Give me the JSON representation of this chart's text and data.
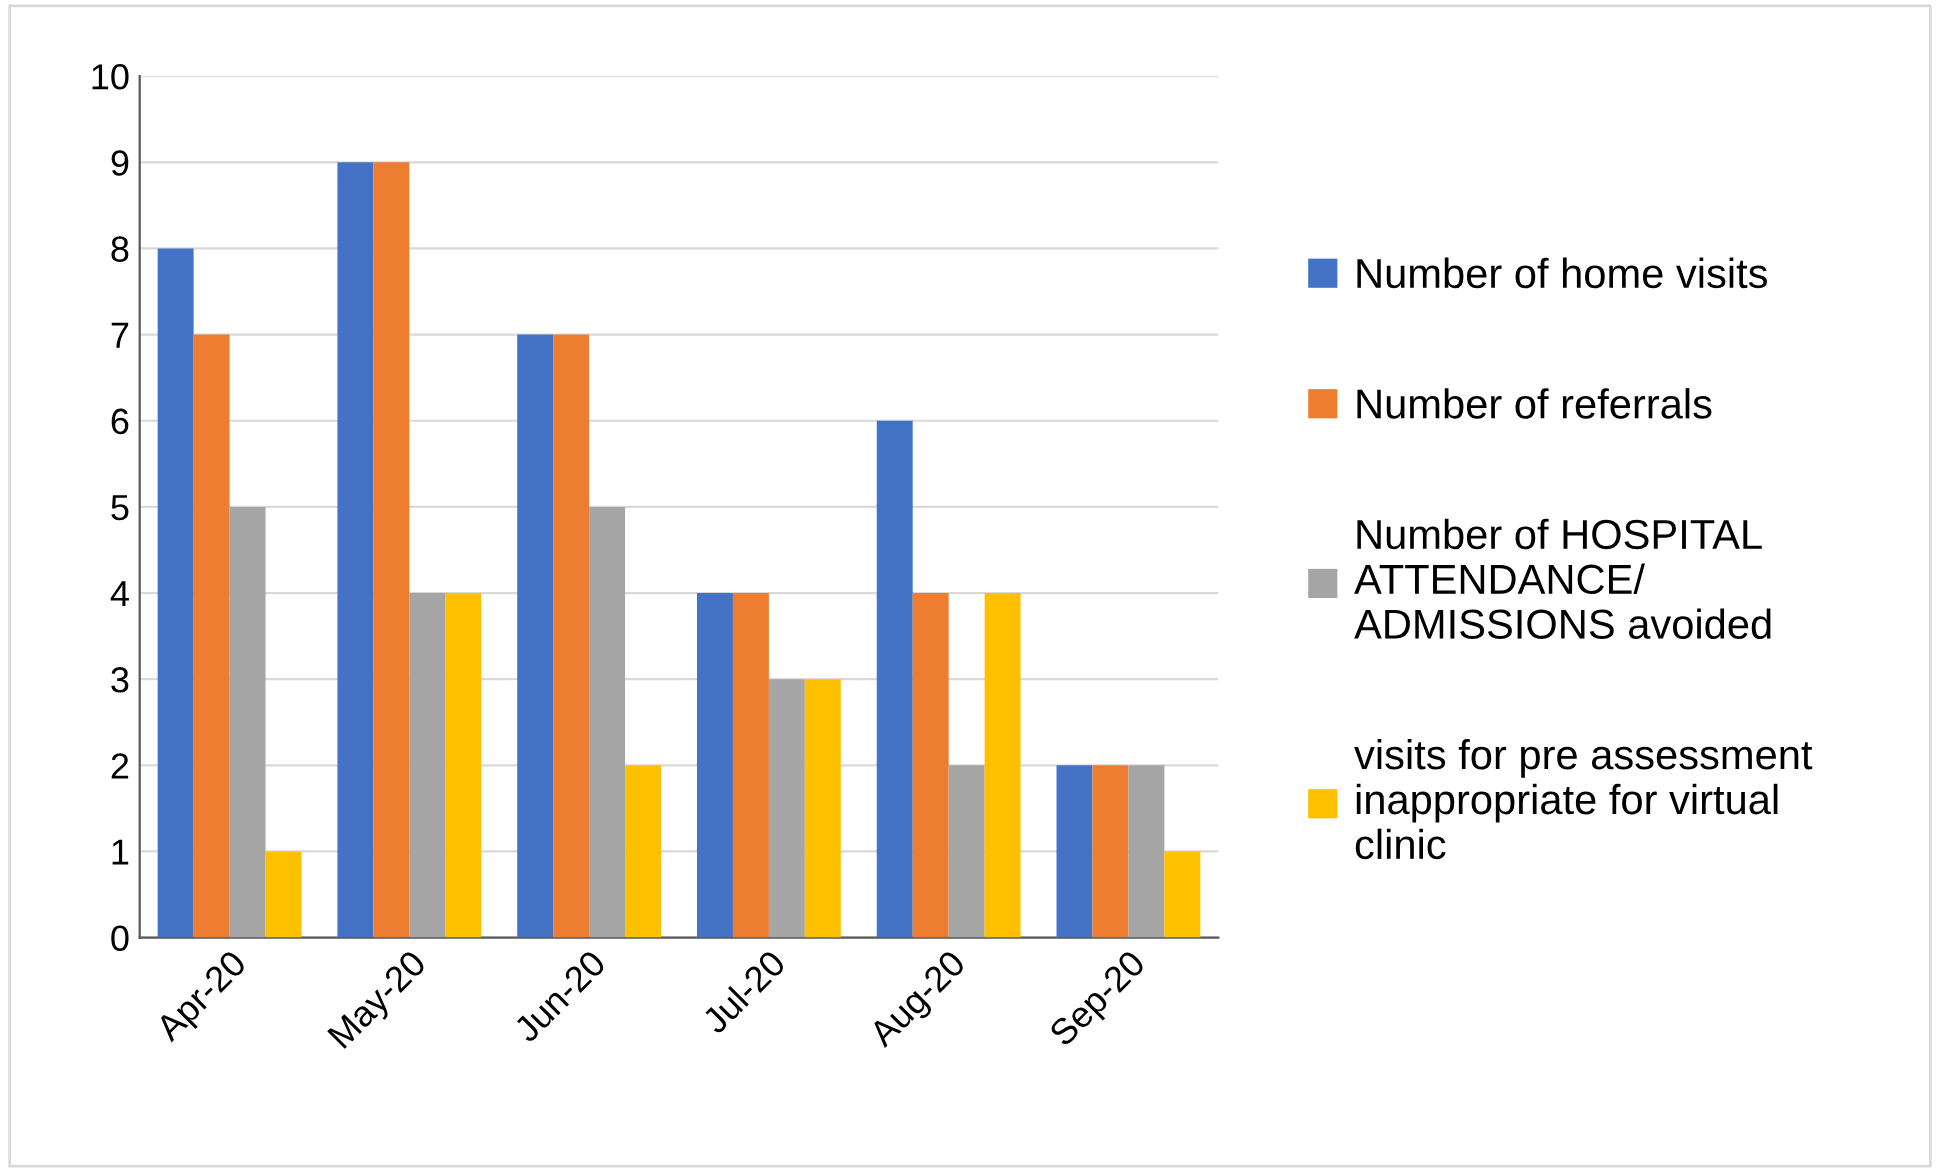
{
  "chart_data": {
    "type": "bar",
    "categories": [
      "Apr-20",
      "May-20",
      "Jun-20",
      "Jul-20",
      "Aug-20",
      "Sep-20"
    ],
    "series": [
      {
        "name": "Number of home visits",
        "color": "#4472c4",
        "values": [
          8,
          9,
          7,
          4,
          6,
          2
        ]
      },
      {
        "name": "Number of referrals",
        "color": "#ed7d31",
        "values": [
          7,
          9,
          7,
          4,
          4,
          2
        ]
      },
      {
        "name": "Number of HOSPITAL\nATTENDANCE/\nADMISSIONS avoided",
        "color": "#a5a5a5",
        "values": [
          5,
          4,
          5,
          3,
          2,
          2
        ]
      },
      {
        "name": "visits for pre assessment\ninappropriate for virtual\nclinic",
        "color": "#ffc000",
        "values": [
          1,
          4,
          2,
          3,
          4,
          1
        ]
      }
    ],
    "ylim": [
      0,
      10
    ],
    "yticks": [
      0,
      1,
      2,
      3,
      4,
      5,
      6,
      7,
      8,
      9,
      10
    ],
    "grid": "y",
    "legend": "right"
  }
}
